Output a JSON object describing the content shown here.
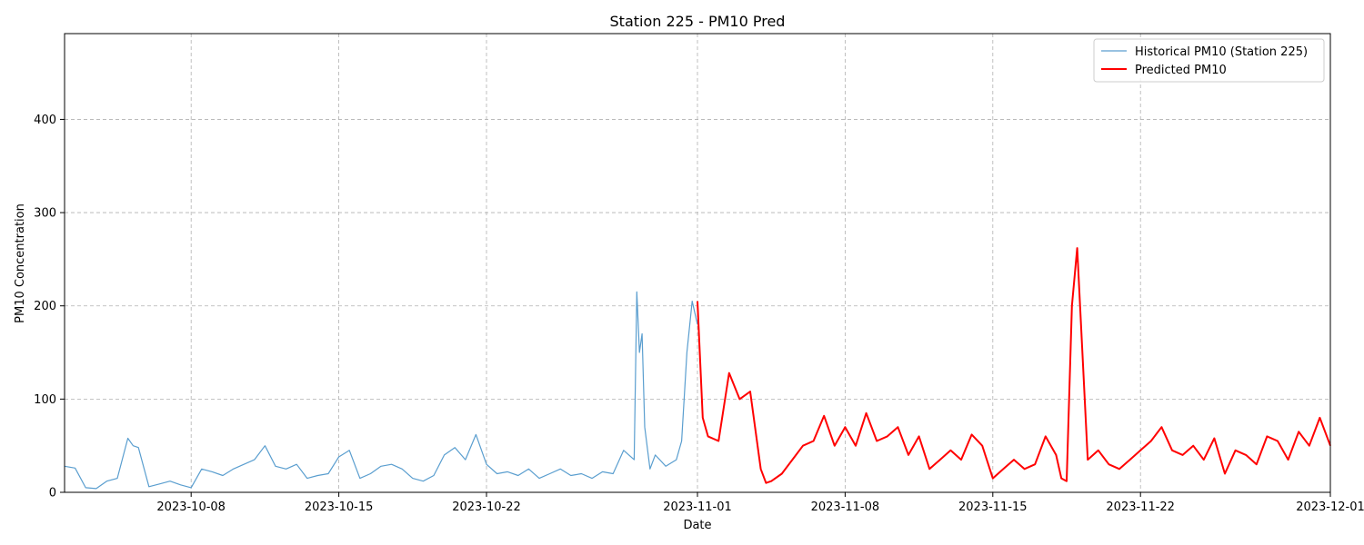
{
  "chart_data": {
    "type": "line",
    "title": "Station 225 - PM10 Pred",
    "xlabel": "Date",
    "ylabel": "PM10 Concentration",
    "xlim": [
      "2023-10-02",
      "2023-12-01"
    ],
    "ylim": [
      0,
      492
    ],
    "x_ticks": [
      "2023-10-08",
      "2023-10-15",
      "2023-10-22",
      "2023-11-01",
      "2023-11-08",
      "2023-11-15",
      "2023-11-22",
      "2023-12-01"
    ],
    "y_ticks": [
      0,
      100,
      200,
      300,
      400
    ],
    "grid": true,
    "legend_position": "upper right",
    "series": [
      {
        "name": "Historical PM10 (Station 225)",
        "color": "#5a9ecf",
        "x": [
          "2023-10-02",
          "2023-10-02 12:00",
          "2023-10-03",
          "2023-10-03 12:00",
          "2023-10-04",
          "2023-10-04 12:00",
          "2023-10-05",
          "2023-10-05 06:00",
          "2023-10-05 12:00",
          "2023-10-06",
          "2023-10-06 12:00",
          "2023-10-07",
          "2023-10-07 12:00",
          "2023-10-08",
          "2023-10-08 12:00",
          "2023-10-09",
          "2023-10-09 12:00",
          "2023-10-10",
          "2023-10-10 12:00",
          "2023-10-11",
          "2023-10-11 12:00",
          "2023-10-12",
          "2023-10-12 12:00",
          "2023-10-13",
          "2023-10-13 12:00",
          "2023-10-14",
          "2023-10-14 12:00",
          "2023-10-15",
          "2023-10-15 12:00",
          "2023-10-16",
          "2023-10-16 12:00",
          "2023-10-17",
          "2023-10-17 12:00",
          "2023-10-18",
          "2023-10-18 12:00",
          "2023-10-19",
          "2023-10-19 12:00",
          "2023-10-20",
          "2023-10-20 12:00",
          "2023-10-21",
          "2023-10-21 12:00",
          "2023-10-22",
          "2023-10-22 12:00",
          "2023-10-23",
          "2023-10-23 12:00",
          "2023-10-24",
          "2023-10-24 12:00",
          "2023-10-25",
          "2023-10-25 12:00",
          "2023-10-26",
          "2023-10-26 12:00",
          "2023-10-27",
          "2023-10-27 12:00",
          "2023-10-28",
          "2023-10-28 12:00",
          "2023-10-29",
          "2023-10-29 03:00",
          "2023-10-29 06:00",
          "2023-10-29 09:00",
          "2023-10-29 12:00",
          "2023-10-29 18:00",
          "2023-10-30",
          "2023-10-30 12:00",
          "2023-10-31",
          "2023-10-31 06:00",
          "2023-10-31 12:00",
          "2023-10-31 18:00",
          "2023-11-01"
        ],
        "y": [
          28,
          26,
          5,
          4,
          12,
          15,
          58,
          50,
          48,
          6,
          9,
          12,
          8,
          5,
          25,
          22,
          18,
          25,
          30,
          35,
          50,
          28,
          25,
          30,
          15,
          18,
          20,
          38,
          45,
          15,
          20,
          28,
          30,
          25,
          15,
          12,
          18,
          40,
          48,
          35,
          62,
          30,
          20,
          22,
          18,
          25,
          15,
          20,
          25,
          18,
          20,
          15,
          22,
          20,
          45,
          35,
          215,
          150,
          170,
          70,
          25,
          40,
          28,
          35,
          55,
          150,
          205,
          180
        ]
      },
      {
        "name": "Predicted PM10",
        "color": "#ff0000",
        "x": [
          "2023-11-01",
          "2023-11-01 06:00",
          "2023-11-01 12:00",
          "2023-11-02",
          "2023-11-02 12:00",
          "2023-11-03",
          "2023-11-03 12:00",
          "2023-11-04",
          "2023-11-04 06:00",
          "2023-11-04 12:00",
          "2023-11-05",
          "2023-11-05 12:00",
          "2023-11-06",
          "2023-11-06 12:00",
          "2023-11-07",
          "2023-11-07 12:00",
          "2023-11-08",
          "2023-11-08 12:00",
          "2023-11-09",
          "2023-11-09 12:00",
          "2023-11-10",
          "2023-11-10 12:00",
          "2023-11-11",
          "2023-11-11 12:00",
          "2023-11-12",
          "2023-11-12 12:00",
          "2023-11-13",
          "2023-11-13 12:00",
          "2023-11-14",
          "2023-11-14 12:00",
          "2023-11-15",
          "2023-11-15 12:00",
          "2023-11-16",
          "2023-11-16 12:00",
          "2023-11-17",
          "2023-11-17 12:00",
          "2023-11-18",
          "2023-11-18 06:00",
          "2023-11-18 12:00",
          "2023-11-18 18:00",
          "2023-11-19",
          "2023-11-19 12:00",
          "2023-11-20",
          "2023-11-20 12:00",
          "2023-11-21",
          "2023-11-21 12:00",
          "2023-11-22",
          "2023-11-22 12:00",
          "2023-11-23",
          "2023-11-23 12:00",
          "2023-11-24",
          "2023-11-24 12:00",
          "2023-11-25",
          "2023-11-25 12:00",
          "2023-11-26",
          "2023-11-26 12:00",
          "2023-11-27",
          "2023-11-27 12:00",
          "2023-11-28",
          "2023-11-28 12:00",
          "2023-11-29",
          "2023-11-29 12:00",
          "2023-11-30",
          "2023-11-30 12:00",
          "2023-12-01"
        ],
        "y": [
          205,
          80,
          60,
          55,
          128,
          100,
          108,
          25,
          10,
          12,
          20,
          35,
          50,
          55,
          82,
          50,
          70,
          50,
          85,
          55,
          60,
          70,
          40,
          60,
          25,
          35,
          45,
          35,
          62,
          50,
          15,
          25,
          35,
          25,
          30,
          60,
          40,
          15,
          12,
          200,
          262,
          35,
          45,
          30,
          25,
          35,
          45,
          55,
          70,
          45,
          40,
          50,
          35,
          58,
          20,
          45,
          40,
          30,
          60,
          55,
          35,
          65,
          50,
          80,
          50
        ]
      }
    ]
  }
}
